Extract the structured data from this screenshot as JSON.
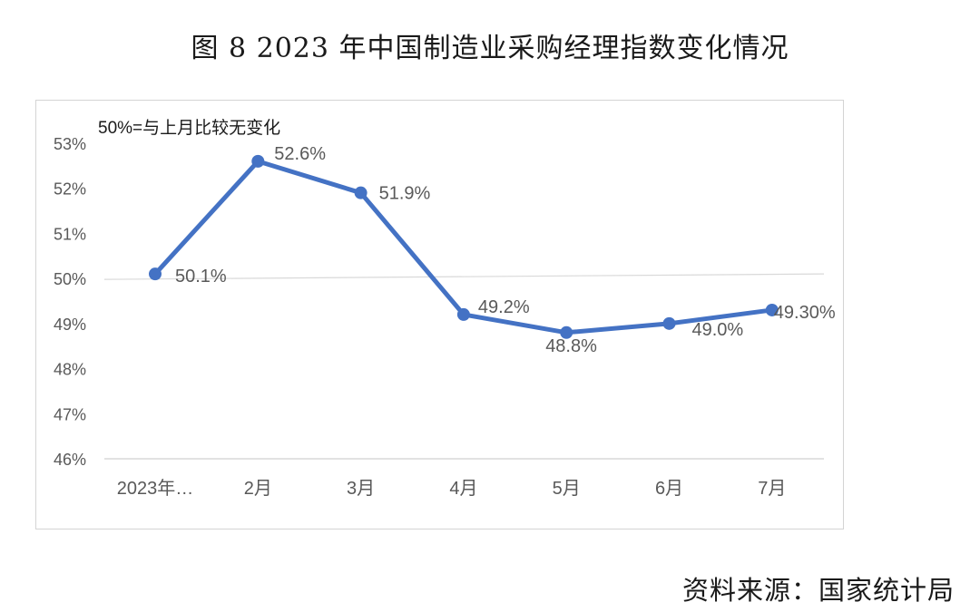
{
  "title": "图 8   2023 年中国制造业采购经理指数变化情况",
  "source": "资料来源：国家统计局",
  "chart_data": {
    "type": "line",
    "annotation": "50%=与上月比较无变化",
    "categories": [
      "2023年…",
      "2月",
      "3月",
      "4月",
      "5月",
      "6月",
      "7月"
    ],
    "values": [
      50.1,
      52.6,
      51.9,
      49.2,
      48.8,
      49.0,
      49.3
    ],
    "data_labels": [
      "50.1%",
      "52.6%",
      "51.9%",
      "49.2%",
      "48.8%",
      "49.0%",
      "49.30%"
    ],
    "y_ticks": [
      "46%",
      "47%",
      "48%",
      "49%",
      "50%",
      "51%",
      "52%",
      "53%"
    ],
    "ylim": [
      46,
      53
    ],
    "reference_line": 50,
    "grid": false,
    "colors": {
      "line": "#4472c4",
      "axis": "#d9d9d9",
      "text": "#595959"
    }
  }
}
